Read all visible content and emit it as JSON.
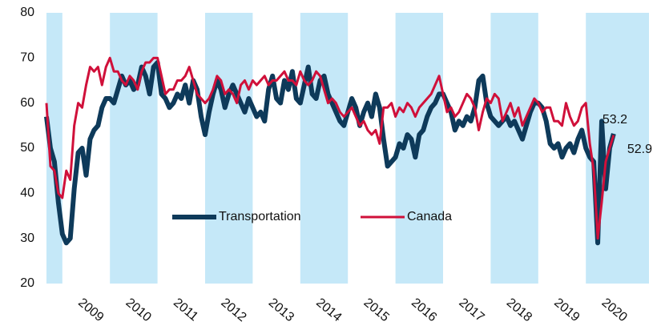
{
  "chart_data": {
    "type": "line",
    "categories": [
      null,
      null,
      null,
      null,
      null,
      null,
      null,
      null,
      null,
      null,
      "2009",
      null,
      null,
      null,
      null,
      null,
      null,
      null,
      null,
      null,
      null,
      null,
      "2010",
      null,
      null,
      null,
      null,
      null,
      null,
      null,
      null,
      null,
      null,
      null,
      "2011",
      null,
      null,
      null,
      null,
      null,
      null,
      null,
      null,
      null,
      null,
      null,
      "2012",
      null,
      null,
      null,
      null,
      null,
      null,
      null,
      null,
      null,
      null,
      null,
      "2013",
      null,
      null,
      null,
      null,
      null,
      null,
      null,
      null,
      null,
      null,
      null,
      "2014",
      null,
      null,
      null,
      null,
      null,
      null,
      null,
      null,
      null,
      null,
      null,
      "2015",
      null,
      null,
      null,
      null,
      null,
      null,
      null,
      null,
      null,
      null,
      null,
      "2016",
      null,
      null,
      null,
      null,
      null,
      null,
      null,
      null,
      null,
      null,
      null,
      "2017",
      null,
      null,
      null,
      null,
      null,
      null,
      null,
      null,
      null,
      null,
      null,
      "2018",
      null,
      null,
      null,
      null,
      null,
      null,
      null,
      null,
      null,
      null,
      null,
      "2019",
      null,
      null,
      null,
      null,
      null,
      null,
      null,
      null,
      null,
      null,
      null,
      "2020",
      null
    ],
    "series": [
      {
        "name": "Transportation",
        "color": "#0e3a5a",
        "values": [
          57,
          50,
          47,
          38,
          31,
          29,
          30,
          41,
          49,
          50,
          44,
          52,
          54,
          55,
          59,
          61,
          61,
          60,
          63,
          66,
          64,
          65,
          63,
          64,
          68,
          66,
          62,
          68,
          69,
          62,
          61,
          59,
          60,
          62,
          61,
          64,
          60,
          65,
          63,
          57,
          53,
          58,
          62,
          65,
          63,
          59,
          62,
          64,
          62,
          60,
          58,
          61,
          59,
          57,
          58,
          56,
          63,
          66,
          61,
          60,
          65,
          63,
          67,
          61,
          60,
          64,
          68,
          62,
          61,
          65,
          66,
          62,
          60,
          58,
          56,
          55,
          58,
          61,
          59,
          55,
          58,
          60,
          57,
          62,
          59,
          52,
          46,
          47,
          48,
          51,
          50,
          53,
          52,
          48,
          53,
          54,
          57,
          59,
          60,
          62,
          62,
          60,
          58,
          54,
          56,
          55,
          57,
          56,
          59,
          65,
          66,
          60,
          57,
          56,
          55,
          56,
          57,
          55,
          56,
          54,
          52,
          55,
          58,
          60,
          60,
          59,
          56,
          51,
          50,
          51,
          48,
          50,
          51,
          49,
          52,
          54,
          50,
          48,
          47,
          29,
          56,
          41,
          50,
          53.2
        ]
      },
      {
        "name": "Canada",
        "color": "#d0103a",
        "values": [
          60,
          46,
          45,
          40,
          39,
          45,
          43,
          55,
          60,
          59,
          64,
          68,
          67,
          68,
          64,
          68,
          70,
          67,
          67,
          65,
          64,
          66,
          65,
          63,
          67,
          69,
          69,
          70,
          70,
          66,
          62,
          63,
          63,
          65,
          65,
          66,
          68,
          65,
          62,
          61,
          60,
          61,
          63,
          66,
          65,
          62,
          63,
          62,
          60,
          64,
          65,
          63,
          65,
          64,
          65,
          66,
          64,
          65,
          65,
          66,
          67,
          65,
          65,
          64,
          67,
          65,
          64,
          65,
          67,
          66,
          63,
          60,
          61,
          60,
          58,
          57,
          58,
          59,
          57,
          55,
          56,
          54,
          53,
          54,
          51,
          59,
          59,
          60,
          57,
          59,
          58,
          60,
          59,
          57,
          59,
          60,
          61,
          62,
          64,
          66,
          62,
          58,
          59,
          57,
          58,
          60,
          62,
          61,
          59,
          54,
          58,
          61,
          60,
          62,
          61,
          56,
          58,
          60,
          57,
          59,
          55,
          57,
          59,
          61,
          60,
          58,
          59,
          59,
          56,
          56,
          55,
          60,
          57,
          55,
          56,
          59,
          60,
          51,
          45,
          30,
          38,
          47,
          50,
          52.9
        ]
      }
    ],
    "ylim": [
      20,
      80
    ],
    "yticks": [
      20,
      30,
      40,
      50,
      60,
      70,
      80
    ],
    "legend": "center",
    "band_color": "#c5e8f8"
  }
}
